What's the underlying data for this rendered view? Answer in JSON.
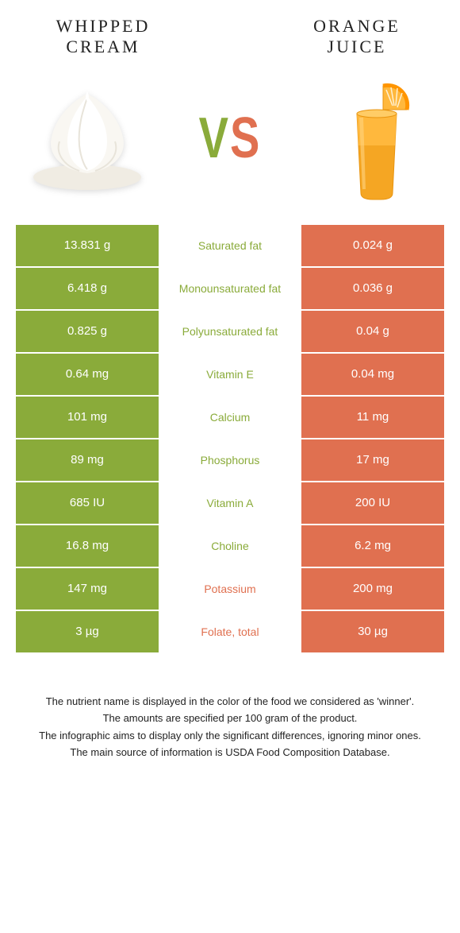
{
  "header": {
    "left_title_line1": "WHIPPED",
    "left_title_line2": "CREAM",
    "right_title_line1": "ORANGE",
    "right_title_line2": "JUICE",
    "vs_v": "V",
    "vs_s": "S"
  },
  "colors": {
    "green": "#8aab3a",
    "orange": "#e07050",
    "white": "#ffffff",
    "text": "#222222"
  },
  "rows": [
    {
      "left": "13.831 g",
      "label": "Saturated fat",
      "right": "0.024 g",
      "winner": "left"
    },
    {
      "left": "6.418 g",
      "label": "Monounsaturated fat",
      "right": "0.036 g",
      "winner": "left"
    },
    {
      "left": "0.825 g",
      "label": "Polyunsaturated fat",
      "right": "0.04 g",
      "winner": "left"
    },
    {
      "left": "0.64 mg",
      "label": "Vitamin E",
      "right": "0.04 mg",
      "winner": "left"
    },
    {
      "left": "101 mg",
      "label": "Calcium",
      "right": "11 mg",
      "winner": "left"
    },
    {
      "left": "89 mg",
      "label": "Phosphorus",
      "right": "17 mg",
      "winner": "left"
    },
    {
      "left": "685 IU",
      "label": "Vitamin A",
      "right": "200 IU",
      "winner": "left"
    },
    {
      "left": "16.8 mg",
      "label": "Choline",
      "right": "6.2 mg",
      "winner": "left"
    },
    {
      "left": "147 mg",
      "label": "Potassium",
      "right": "200 mg",
      "winner": "right"
    },
    {
      "left": "3 µg",
      "label": "Folate, total",
      "right": "30 µg",
      "winner": "right"
    }
  ],
  "footer": {
    "l1": "The nutrient name is displayed in the color of the food we considered as 'winner'.",
    "l2": "The amounts are specified per 100 gram of the product.",
    "l3": "The infographic aims to display only the significant differences, ignoring minor ones.",
    "l4": "The main source of information is USDA Food Composition Database."
  }
}
